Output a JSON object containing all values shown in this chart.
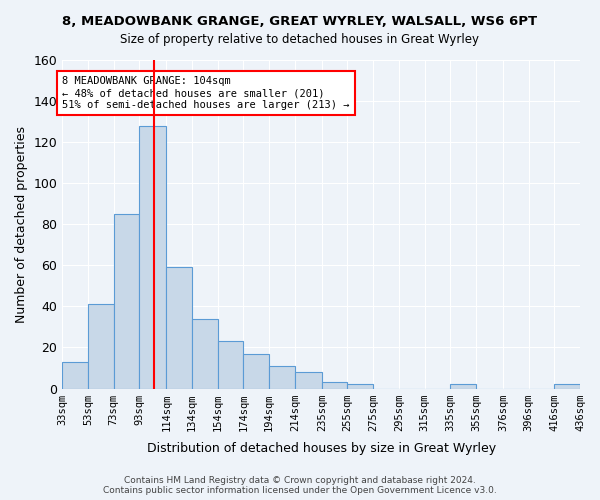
{
  "title": "8, MEADOWBANK GRANGE, GREAT WYRLEY, WALSALL, WS6 6PT",
  "subtitle": "Size of property relative to detached houses in Great Wyrley",
  "xlabel": "Distribution of detached houses by size in Great Wyrley",
  "ylabel": "Number of detached properties",
  "bar_color": "#c8d8e8",
  "bar_edge_color": "#5b9bd5",
  "background_color": "#eef3f9",
  "grid_color": "white",
  "red_line_x": 104,
  "bin_edges": [
    33,
    53,
    73,
    93,
    114,
    134,
    154,
    174,
    194,
    214,
    235,
    255,
    275,
    295,
    315,
    335,
    355,
    376,
    396,
    416,
    436
  ],
  "bin_labels": [
    "33sqm",
    "53sqm",
    "73sqm",
    "93sqm",
    "114sqm",
    "134sqm",
    "154sqm",
    "174sqm",
    "194sqm",
    "214sqm",
    "235sqm",
    "255sqm",
    "275sqm",
    "295sqm",
    "315sqm",
    "335sqm",
    "355sqm",
    "376sqm",
    "396sqm",
    "416sqm",
    "436sqm"
  ],
  "bar_heights": [
    13,
    41,
    85,
    128,
    59,
    34,
    23,
    17,
    11,
    8,
    3,
    2,
    0,
    0,
    0,
    2,
    0,
    0,
    0,
    2
  ],
  "annotation_text": "8 MEADOWBANK GRANGE: 104sqm\n← 48% of detached houses are smaller (201)\n51% of semi-detached houses are larger (213) →",
  "annotation_box_color": "white",
  "annotation_box_edge_color": "red",
  "footer": "Contains HM Land Registry data © Crown copyright and database right 2024.\nContains public sector information licensed under the Open Government Licence v3.0.",
  "ylim": [
    0,
    160
  ],
  "yticks": [
    0,
    20,
    40,
    60,
    80,
    100,
    120,
    140,
    160
  ]
}
